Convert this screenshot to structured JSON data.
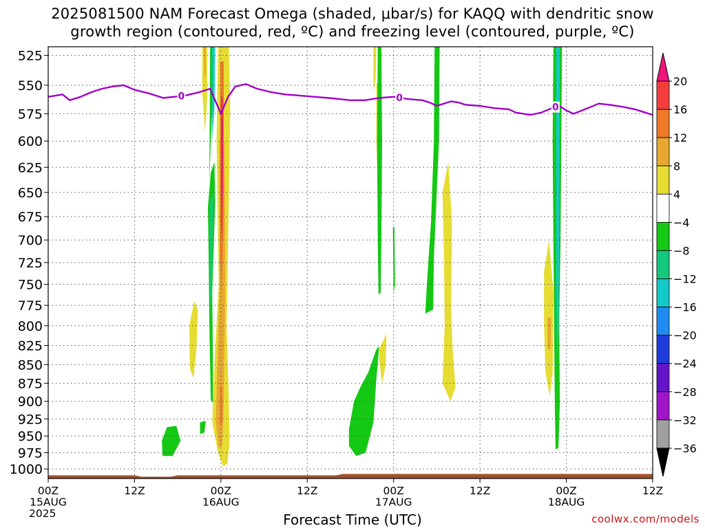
{
  "title_line1": "2025081500 NAM Forecast Omega (shaded, μbar/s) for KAQQ with dendritic snow",
  "title_line2": "growth region (contoured, red, ºC) and freezing level (contoured, purple, ºC)",
  "credit": "coolwx.com/models",
  "chart_data": {
    "type": "heatmap",
    "xlabel": "Forecast Time (UTC)",
    "x_unit": "hours since 2025081500",
    "xlim": [
      0,
      84
    ],
    "x_ticks": [
      {
        "hour": 0,
        "line1": "00Z",
        "line2": "15AUG",
        "line3": "2025"
      },
      {
        "hour": 12,
        "line1": "12Z",
        "line2": "",
        "line3": ""
      },
      {
        "hour": 24,
        "line1": "00Z",
        "line2": "16AUG",
        "line3": ""
      },
      {
        "hour": 36,
        "line1": "12Z",
        "line2": "",
        "line3": ""
      },
      {
        "hour": 48,
        "line1": "00Z",
        "line2": "17AUG",
        "line3": ""
      },
      {
        "hour": 60,
        "line1": "12Z",
        "line2": "",
        "line3": ""
      },
      {
        "hour": 72,
        "line1": "00Z",
        "line2": "18AUG",
        "line3": ""
      },
      {
        "hour": 84,
        "line1": "12Z",
        "line2": "",
        "line3": ""
      }
    ],
    "y_unit": "hPa",
    "y_ticks": [
      525,
      550,
      575,
      600,
      625,
      650,
      675,
      700,
      725,
      750,
      775,
      800,
      825,
      850,
      875,
      900,
      925,
      950,
      975,
      1000
    ],
    "ylim": [
      1015,
      518
    ],
    "y_log_scale": true,
    "grid": "dotted",
    "colorbar": {
      "labels": [
        "20",
        "16",
        "12",
        "8",
        "4",
        "−4",
        "−8",
        "−12",
        "−16",
        "−20",
        "−24",
        "−28",
        "−32",
        "−36"
      ],
      "colors": [
        "#f0147d",
        "#f53c3c",
        "#ee7a28",
        "#e8a830",
        "#e6dc32",
        "#ffffff",
        "#14c814",
        "#14c87d",
        "#14c8c8",
        "#1e8cf0",
        "#1e3cdc",
        "#6414c8",
        "#a014c8",
        "#a0a0a0",
        "#000000"
      ]
    },
    "freezing_level": {
      "color": "#a000c8",
      "label": "0",
      "label_hours": [
        18.5,
        48.8,
        70.5
      ],
      "points": [
        [
          0,
          560
        ],
        [
          2,
          558
        ],
        [
          3,
          563
        ],
        [
          4.5,
          560
        ],
        [
          6,
          556
        ],
        [
          7.5,
          553
        ],
        [
          9,
          551
        ],
        [
          10.5,
          550
        ],
        [
          12,
          554
        ],
        [
          14,
          557
        ],
        [
          16,
          561
        ],
        [
          17.5,
          560
        ],
        [
          19,
          559
        ],
        [
          21,
          556
        ],
        [
          22.5,
          553
        ],
        [
          24,
          575
        ],
        [
          25,
          560
        ],
        [
          26,
          551
        ],
        [
          27.5,
          549
        ],
        [
          29,
          553
        ],
        [
          31,
          556
        ],
        [
          33,
          558
        ],
        [
          35,
          559
        ],
        [
          37,
          560
        ],
        [
          39,
          561
        ],
        [
          40.5,
          562
        ],
        [
          42,
          563
        ],
        [
          44,
          563
        ],
        [
          46,
          561
        ],
        [
          48,
          560
        ],
        [
          50,
          562
        ],
        [
          52,
          563
        ],
        [
          53,
          565
        ],
        [
          54,
          568
        ],
        [
          55,
          566
        ],
        [
          56,
          564
        ],
        [
          57,
          565
        ],
        [
          58,
          567
        ],
        [
          60,
          568
        ],
        [
          62,
          570
        ],
        [
          64,
          571
        ],
        [
          65,
          574
        ],
        [
          67,
          576
        ],
        [
          68.5,
          574
        ],
        [
          70,
          570
        ],
        [
          71,
          568
        ],
        [
          72,
          572
        ],
        [
          73,
          575
        ],
        [
          75,
          570
        ],
        [
          76.5,
          566
        ],
        [
          78,
          567
        ],
        [
          80,
          569
        ],
        [
          81.5,
          571
        ],
        [
          83,
          574
        ],
        [
          84,
          576
        ]
      ]
    },
    "omega_regions": [
      {
        "value": 4,
        "points": [
          [
            21.4,
            518
          ],
          [
            22.1,
            518
          ],
          [
            22.1,
            560
          ],
          [
            21.8,
            592
          ],
          [
            21.4,
            555
          ]
        ]
      },
      {
        "value": 8,
        "points": [
          [
            21.6,
            518
          ],
          [
            21.9,
            518
          ],
          [
            21.9,
            540
          ],
          [
            21.7,
            545
          ]
        ]
      },
      {
        "value": -4,
        "points": [
          [
            22.5,
            518
          ],
          [
            23,
            518
          ],
          [
            22.9,
            560
          ],
          [
            22.6,
            600
          ],
          [
            22.4,
            640
          ]
        ]
      },
      {
        "value": -12,
        "points": [
          [
            22.8,
            518
          ],
          [
            23.2,
            518
          ],
          [
            23.1,
            570
          ],
          [
            22.8,
            600
          ]
        ]
      },
      {
        "value": 4,
        "points": [
          [
            23.6,
            518
          ],
          [
            25.1,
            518
          ],
          [
            25.3,
            570
          ],
          [
            25.2,
            620
          ],
          [
            25,
            700
          ],
          [
            24.8,
            800
          ],
          [
            25.1,
            900
          ],
          [
            25.2,
            960
          ],
          [
            24.9,
            992
          ],
          [
            24.3,
            996
          ],
          [
            23.6,
            975
          ],
          [
            22.8,
            930
          ],
          [
            23.2,
            830
          ],
          [
            23.7,
            750
          ],
          [
            23.6,
            700
          ],
          [
            23.4,
            600
          ]
        ]
      },
      {
        "value": 8,
        "points": [
          [
            23.8,
            600
          ],
          [
            24.5,
            600
          ],
          [
            24.6,
            760
          ],
          [
            24.4,
            900
          ],
          [
            24.2,
            965
          ],
          [
            23.7,
            968
          ],
          [
            23.3,
            930
          ],
          [
            23.5,
            850
          ],
          [
            23.8,
            760
          ]
        ]
      },
      {
        "value": 12,
        "points": [
          [
            23.9,
            880
          ],
          [
            24.2,
            880
          ],
          [
            24.2,
            930
          ],
          [
            23.9,
            935
          ]
        ]
      },
      {
        "value": 12,
        "points": [
          [
            23.9,
            530
          ],
          [
            24.4,
            530
          ],
          [
            24.4,
            600
          ],
          [
            24.3,
            700
          ],
          [
            24.1,
            760
          ],
          [
            23.9,
            720
          ]
        ]
      },
      {
        "value": 16,
        "points": [
          [
            24,
            560
          ],
          [
            24.3,
            560
          ],
          [
            24.3,
            650
          ],
          [
            24.2,
            700
          ],
          [
            24,
            680
          ]
        ]
      },
      {
        "value": 20,
        "points": [
          [
            24.05,
            580
          ],
          [
            24.25,
            580
          ],
          [
            24.22,
            650
          ],
          [
            24.1,
            665
          ]
        ]
      },
      {
        "value": -4,
        "points": [
          [
            22.2,
            665
          ],
          [
            22.6,
            630
          ],
          [
            23.1,
            620
          ],
          [
            23.2,
            660
          ],
          [
            22.8,
            760
          ],
          [
            22.9,
            860
          ],
          [
            22.9,
            902
          ],
          [
            22.6,
            898
          ],
          [
            22.4,
            800
          ],
          [
            22.3,
            720
          ]
        ]
      },
      {
        "value": -8,
        "points": [
          [
            22.5,
            660
          ],
          [
            22.9,
            650
          ],
          [
            22.8,
            740
          ],
          [
            22.7,
            800
          ],
          [
            22.5,
            760
          ]
        ]
      },
      {
        "value": 4,
        "points": [
          [
            19.6,
            800
          ],
          [
            20.3,
            770
          ],
          [
            20.8,
            780
          ],
          [
            20.6,
            830
          ],
          [
            20.2,
            868
          ],
          [
            19.7,
            855
          ]
        ]
      },
      {
        "value": -4,
        "points": [
          [
            21.1,
            930
          ],
          [
            21.9,
            928
          ],
          [
            21.7,
            945
          ],
          [
            21.1,
            947
          ]
        ]
      },
      {
        "value": -4,
        "points": [
          [
            15.8,
            957
          ],
          [
            16.5,
            937
          ],
          [
            17.8,
            935
          ],
          [
            18.4,
            957
          ],
          [
            17.3,
            980
          ],
          [
            15.9,
            980
          ]
        ]
      },
      {
        "value": 4,
        "points": [
          [
            45.2,
            518
          ],
          [
            45.6,
            518
          ],
          [
            45.5,
            545
          ],
          [
            45.2,
            555
          ]
        ]
      },
      {
        "value": 4,
        "points": [
          [
            45.6,
            548
          ],
          [
            46,
            548
          ],
          [
            46.1,
            600
          ],
          [
            45.8,
            645
          ],
          [
            45.6,
            600
          ]
        ]
      },
      {
        "value": -4,
        "points": [
          [
            45.8,
            518
          ],
          [
            46.3,
            518
          ],
          [
            46.4,
            600
          ],
          [
            46.3,
            700
          ],
          [
            46.2,
            760
          ],
          [
            45.9,
            762
          ],
          [
            45.8,
            700
          ],
          [
            45.7,
            600
          ]
        ]
      },
      {
        "value": -4,
        "points": [
          [
            47.9,
            686
          ],
          [
            48.1,
            686
          ],
          [
            48.2,
            750
          ],
          [
            48,
            760
          ]
        ]
      },
      {
        "value": -4,
        "points": [
          [
            41.8,
            940
          ],
          [
            42.5,
            900
          ],
          [
            43.4,
            880
          ],
          [
            44.5,
            860
          ],
          [
            45.6,
            830
          ],
          [
            46,
            826
          ],
          [
            45.6,
            870
          ],
          [
            45.2,
            930
          ],
          [
            44.1,
            975
          ],
          [
            42.8,
            980
          ],
          [
            41.8,
            965
          ]
        ]
      },
      {
        "value": 4,
        "points": [
          [
            46,
            830
          ],
          [
            47,
            810
          ],
          [
            46.9,
            850
          ],
          [
            46.4,
            875
          ],
          [
            46,
            845
          ]
        ]
      },
      {
        "value": -4,
        "points": [
          [
            53.7,
            518
          ],
          [
            54.4,
            518
          ],
          [
            54.3,
            600
          ],
          [
            54,
            650
          ],
          [
            53.6,
            720
          ],
          [
            53.5,
            780
          ],
          [
            52.4,
            785
          ],
          [
            52.7,
            740
          ],
          [
            53.2,
            680
          ],
          [
            53.6,
            600
          ]
        ]
      },
      {
        "value": 4,
        "points": [
          [
            54.8,
            650
          ],
          [
            55.6,
            620
          ],
          [
            56.1,
            680
          ],
          [
            56,
            780
          ],
          [
            56.2,
            830
          ],
          [
            56.6,
            880
          ],
          [
            55.9,
            900
          ],
          [
            54.8,
            875
          ],
          [
            55.1,
            800
          ],
          [
            55,
            720
          ]
        ]
      },
      {
        "value": 4,
        "points": [
          [
            68.9,
            735
          ],
          [
            69.6,
            700
          ],
          [
            70.2,
            760
          ],
          [
            70.1,
            860
          ],
          [
            69.7,
            893
          ],
          [
            69.1,
            860
          ],
          [
            68.9,
            800
          ]
        ]
      },
      {
        "value": 8,
        "points": [
          [
            69.4,
            790
          ],
          [
            69.9,
            790
          ],
          [
            69.8,
            830
          ],
          [
            69.4,
            830
          ]
        ]
      },
      {
        "value": -4,
        "points": [
          [
            70.2,
            518
          ],
          [
            71.4,
            518
          ],
          [
            71.3,
            600
          ],
          [
            71.2,
            700
          ],
          [
            71,
            800
          ],
          [
            71.1,
            900
          ],
          [
            70.9,
            968
          ],
          [
            70.5,
            970
          ],
          [
            70.4,
            900
          ],
          [
            70.3,
            800
          ],
          [
            70.2,
            700
          ],
          [
            70.1,
            600
          ]
        ]
      },
      {
        "value": -12,
        "points": [
          [
            70.6,
            518
          ],
          [
            71.1,
            518
          ],
          [
            71,
            700
          ],
          [
            70.9,
            800
          ],
          [
            70.7,
            850
          ],
          [
            70.6,
            750
          ]
        ]
      }
    ],
    "terrain": {
      "color": "#a0522d",
      "top_hpa": 1010,
      "bottom_hpa": 1015
    }
  }
}
